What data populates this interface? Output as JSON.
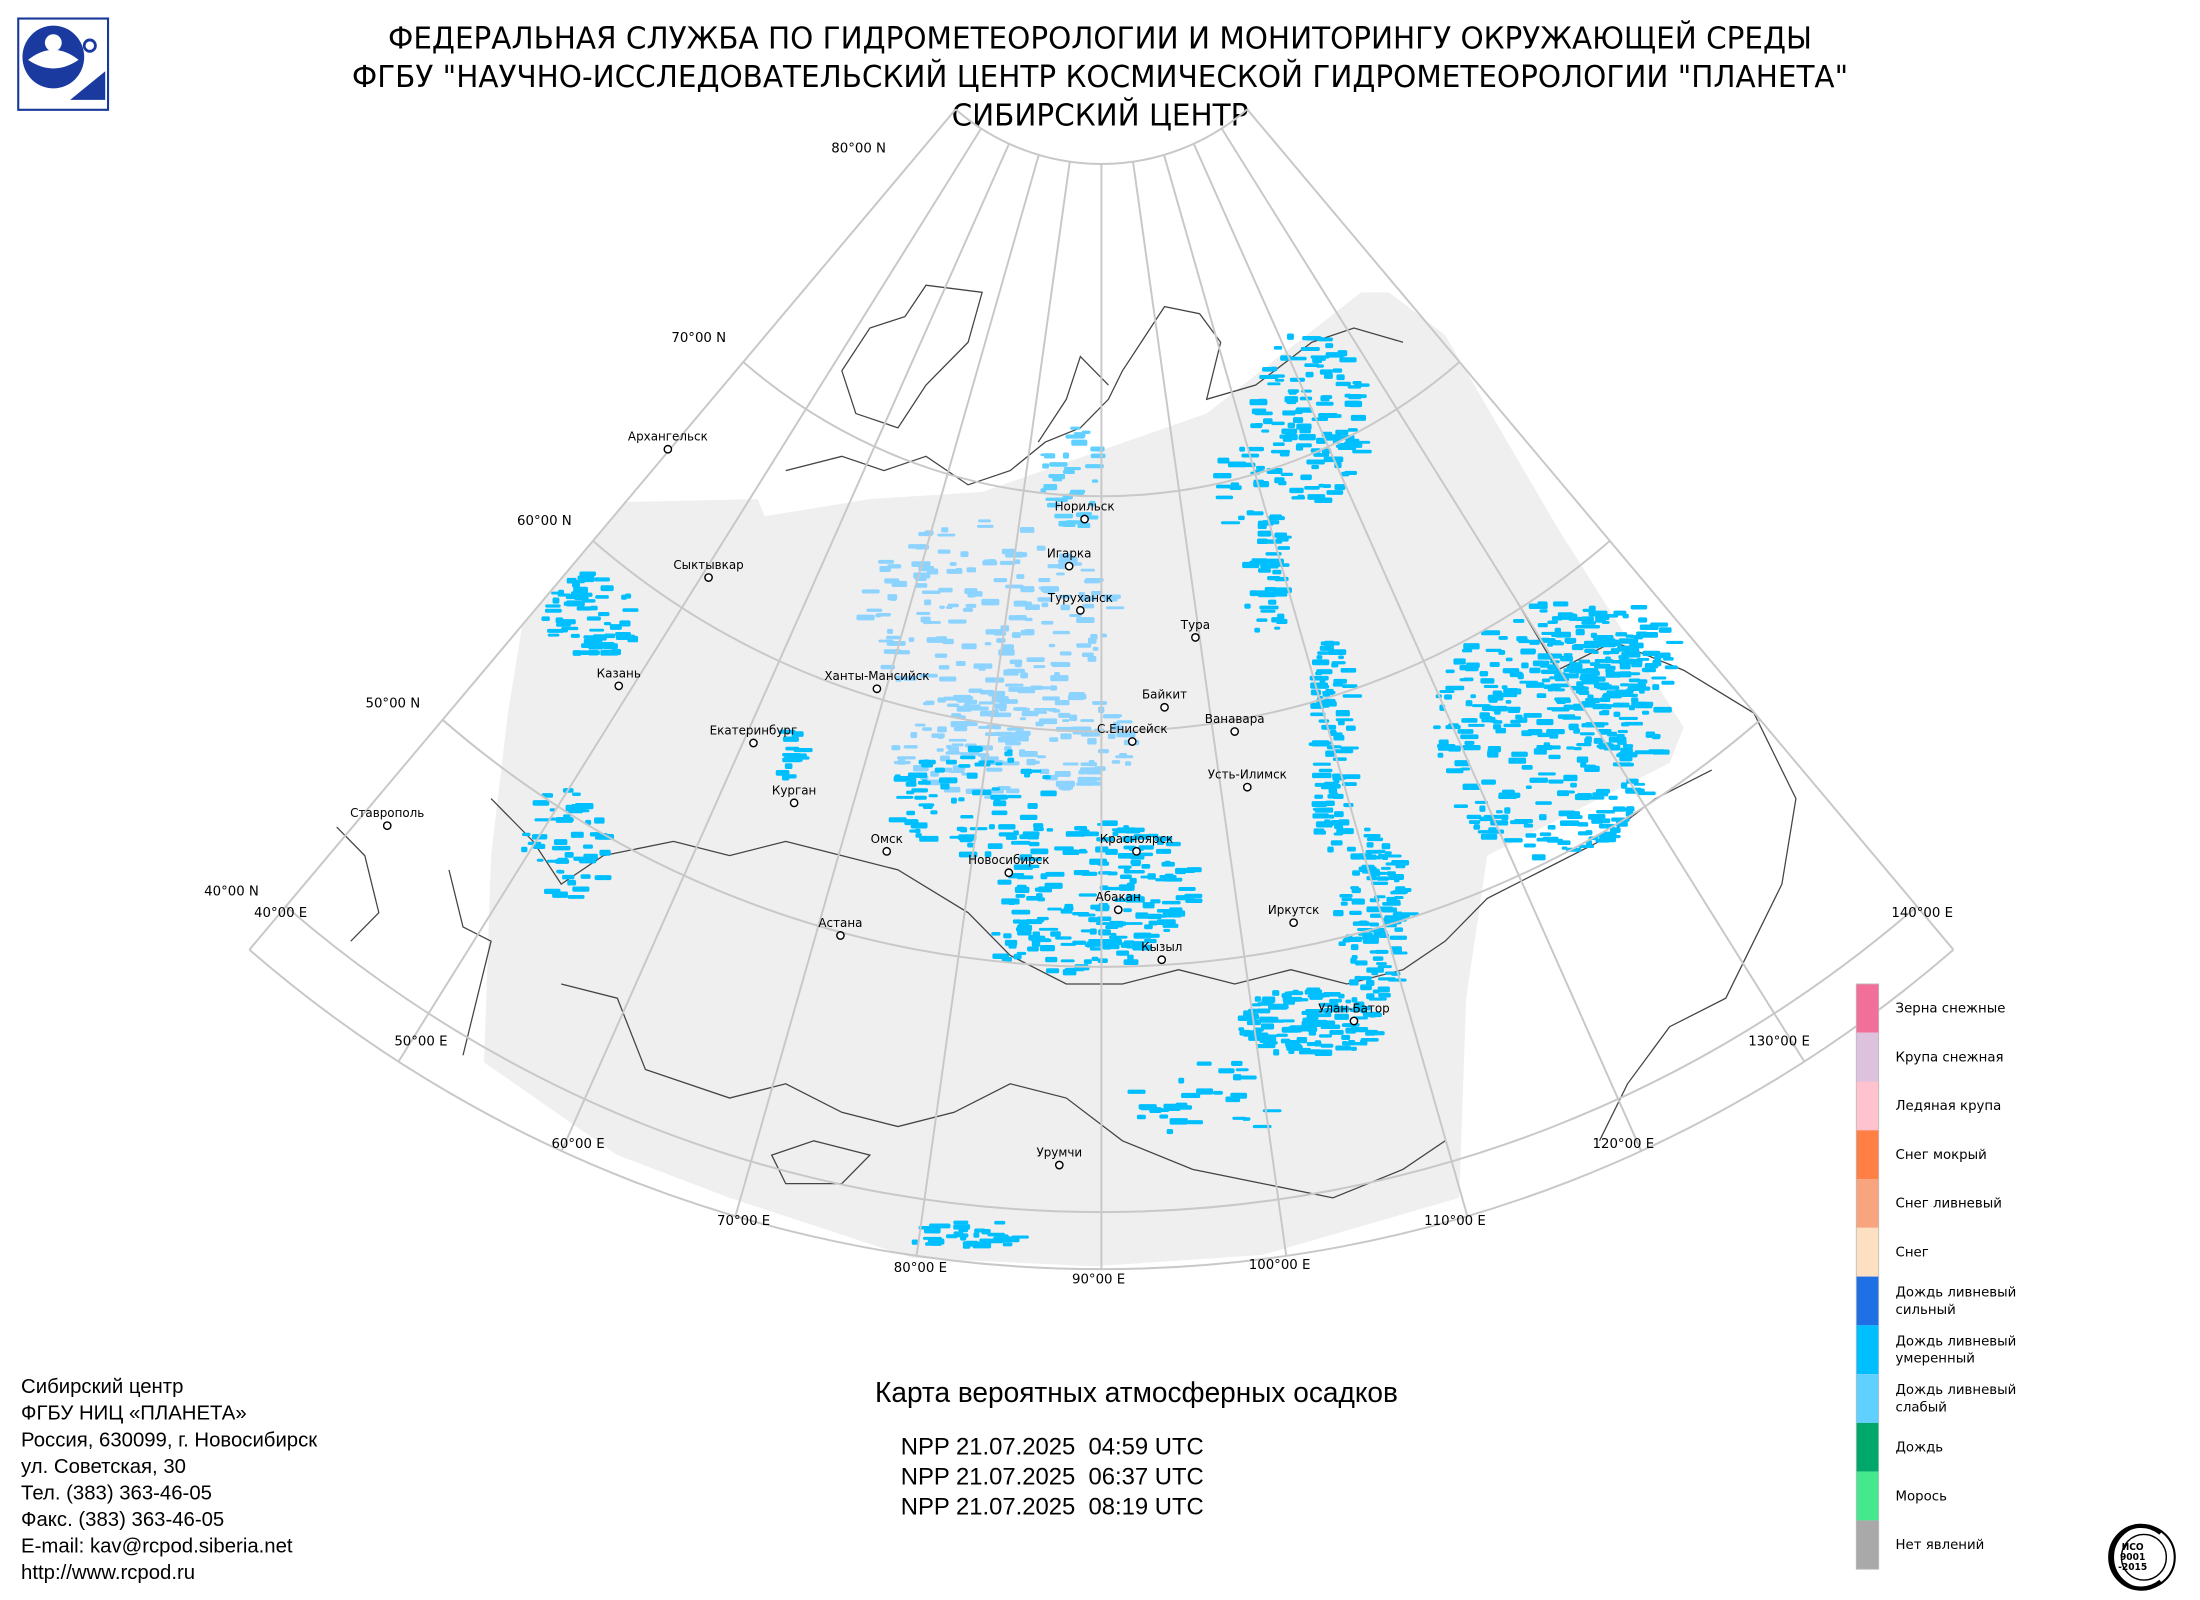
{
  "header": {
    "lines": [
      "ФЕДЕРАЛЬНАЯ СЛУЖБА ПО ГИДРОМЕТЕОРОЛОГИИ И МОНИТОРИНГУ ОКРУЖАЮЩЕЙ СРЕДЫ",
      "ФГБУ \"НАУЧНО-ИССЛЕДОВАТЕЛЬСКИЙ ЦЕНТР КОСМИЧЕСКОЙ ГИДРОМЕТЕОРОЛОГИИ \"ПЛАНЕТА\"",
      "СИБИРСКИЙ ЦЕНТР"
    ]
  },
  "map": {
    "lat_labels": [
      "80°00 N",
      "70°00 N",
      "60°00 N",
      "50°00 N",
      "40°00 N"
    ],
    "lon_labels": [
      "40°00 E",
      "50°00 E",
      "60°00 E",
      "70°00 E",
      "80°00 E",
      "90°00 E",
      "100°00 E",
      "110°00 E",
      "120°00 E",
      "130°00 E",
      "140°00 E"
    ],
    "cities": [
      "Архангельск",
      "Сыктывкар",
      "Казань",
      "Ставрополь",
      "Екатеринбург",
      "Курган",
      "Ханты-Мансийск",
      "Омск",
      "Астана",
      "Новосибирск",
      "Норильск",
      "Игарка",
      "Туруханск",
      "Тура",
      "Байкит",
      "С.Енисейск",
      "Ванавара",
      "Усть-Илимск",
      "Красноярск",
      "Абакан",
      "Кызыл",
      "Иркутск",
      "Улан-Батор",
      "Урумчи"
    ]
  },
  "legend": {
    "items": [
      {
        "label": [
          "Зерна снежные"
        ],
        "color": "#f26f9a"
      },
      {
        "label": [
          "Крупа снежная"
        ],
        "color": "#dcc2dc"
      },
      {
        "label": [
          "Ледяная крупа"
        ],
        "color": "#ffc2cf"
      },
      {
        "label": [
          "Снег мокрый"
        ],
        "color": "#ff7f45"
      },
      {
        "label": [
          "Снег ливневый"
        ],
        "color": "#f8a47e"
      },
      {
        "label": [
          "Снег"
        ],
        "color": "#fde0c2"
      },
      {
        "label": [
          "Дождь ливневый",
          "сильный"
        ],
        "color": "#1f6fe5"
      },
      {
        "label": [
          "Дождь ливневый",
          "умеренный"
        ],
        "color": "#00bfff"
      },
      {
        "label": [
          "Дождь ливневый",
          "слабый"
        ],
        "color": "#5fd0ff"
      },
      {
        "label": [
          "Дождь"
        ],
        "color": "#00a86b"
      },
      {
        "label": [
          "Морось"
        ],
        "color": "#45e88c"
      },
      {
        "label": [
          "Нет явлений"
        ],
        "color": "#a9a9a9"
      }
    ]
  },
  "footer": {
    "lines": [
      "Сибирский центр",
      "ФГБУ НИЦ «ПЛАНЕТА»",
      "Россия, 630099, г. Новосибирск",
      "ул. Советская, 30",
      "Тел. (383) 363-46-05",
      "Факс. (383) 363-46-05",
      "E-mail: kav@rcpod.siberia.net",
      "http://www.rcpod.ru"
    ]
  },
  "product": {
    "title": "Карта вероятных атмосферных осадков",
    "passes": [
      "NPP 21.07.2025  04:59 UTC",
      "NPP 21.07.2025  06:37 UTC",
      "NPP 21.07.2025  08:19 UTC"
    ]
  },
  "iso_stamp": {
    "lines": [
      "ИСО",
      "9001",
      "-2015"
    ]
  }
}
